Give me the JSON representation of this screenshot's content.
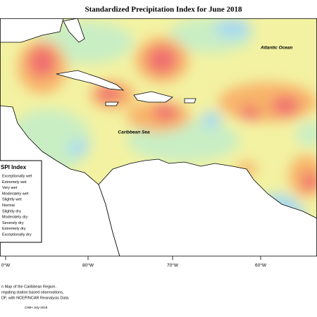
{
  "header": {
    "title": "Standardized Precipitation Index for June 2018"
  },
  "labels": {
    "atlantic": "Atlantic Ocean",
    "caribbean": "Caribbean Sea"
  },
  "legend": {
    "title": "SPI Index",
    "items": [
      "Exceptionally wet",
      "Extremely wet",
      "Very wet",
      "Moderately wet",
      "Slightly wet",
      "Normal",
      "Slightly dry",
      "Moderately dry",
      "Severely dry",
      "Extremely dry",
      "Exceptionally dry"
    ]
  },
  "axis_labels": [
    "0°W",
    "80°W",
    "70°W",
    "60°W"
  ],
  "footnote": {
    "lines": [
      "n Map of the Caribbean Region.",
      "regating station based observations,",
      "DF, with NCEP/NCAR Reanalysis Data."
    ],
    "credit": "CIMH July-2018"
  }
}
